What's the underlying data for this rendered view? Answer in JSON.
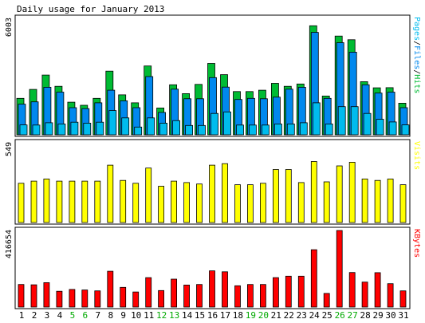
{
  "chart_data": {
    "type": "bar",
    "title": "Daily usage for January 2013",
    "categories": [
      "1",
      "2",
      "3",
      "4",
      "5",
      "6",
      "7",
      "8",
      "9",
      "10",
      "11",
      "12",
      "13",
      "14",
      "15",
      "16",
      "17",
      "18",
      "19",
      "20",
      "21",
      "22",
      "23",
      "24",
      "25",
      "26",
      "27",
      "28",
      "29",
      "30",
      "31"
    ],
    "weekend_days": [
      "5",
      "6",
      "12",
      "13",
      "19",
      "20",
      "26",
      "27"
    ],
    "panels": [
      {
        "id": "hits",
        "ymax_label": "6003",
        "ymax": 6003,
        "side_label": [
          "Pages",
          "/",
          "Files",
          "/",
          "Hits"
        ],
        "series": [
          {
            "name": "Hits",
            "color": "#00bb33",
            "values": [
              1880,
              2340,
              3080,
              2500,
              1680,
              1520,
              1880,
              3280,
              2060,
              1650,
              3550,
              1380,
              2580,
              2120,
              2600,
              3680,
              3100,
              2230,
              2230,
              2300,
              2650,
              2500,
              2620,
              5620,
              2000,
              5090,
              4900,
              2740,
              2420,
              2430,
              1630
            ]
          },
          {
            "name": "Files",
            "color": "#0088ee",
            "values": [
              1580,
              1700,
              2450,
              2200,
              1400,
              1350,
              1650,
              2300,
              1750,
              1400,
              3000,
              1150,
              2350,
              1860,
              1860,
              2950,
              2460,
              1820,
              1880,
              1860,
              1940,
              2350,
              2450,
              5280,
              1880,
              4750,
              4260,
              2580,
              2150,
              2200,
              1400
            ]
          },
          {
            "name": "Pages",
            "color": "#00bbee",
            "values": [
              510,
              500,
              620,
              560,
              650,
              600,
              650,
              1250,
              870,
              400,
              870,
              600,
              730,
              480,
              480,
              1100,
              1180,
              500,
              500,
              500,
              560,
              560,
              620,
              1650,
              560,
              1450,
              1450,
              1100,
              800,
              660,
              510
            ]
          }
        ]
      },
      {
        "id": "visits",
        "ymax_label": "549",
        "ymax": 549,
        "side_label": [
          "Visits"
        ],
        "series": [
          {
            "name": "Visits",
            "color": "#ffff00",
            "values": [
              270,
              285,
              300,
              285,
              285,
              285,
              285,
              395,
              290,
              270,
              375,
              250,
              285,
              275,
              265,
              395,
              405,
              260,
              260,
              270,
              365,
              365,
              275,
              420,
              280,
              390,
              415,
              300,
              290,
              300,
              260
            ]
          }
        ]
      },
      {
        "id": "kbytes",
        "ymax_label": "416654",
        "ymax": 416654,
        "side_label": [
          "KBytes"
        ],
        "series": [
          {
            "name": "KBytes",
            "color": "#ff0000",
            "values": [
              123000,
              121000,
              133000,
              86000,
              96000,
              93000,
              88000,
              195000,
              107000,
              82000,
              160000,
              90000,
              152000,
              120000,
              123000,
              197000,
              192000,
              116000,
              123000,
              123000,
              160000,
              168000,
              168000,
              312000,
              74000,
              416654,
              188000,
              136000,
              187000,
              127000,
              88000
            ]
          }
        ]
      }
    ]
  }
}
